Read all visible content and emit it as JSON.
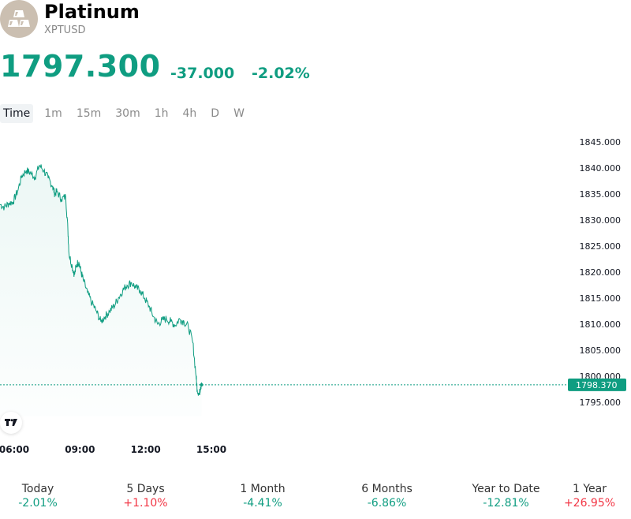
{
  "header": {
    "title": "Platinum",
    "ticker": "XPTUSD",
    "price": "1797.300",
    "change_abs": "-37.000",
    "change_pct": "-2.02%"
  },
  "tabs": [
    {
      "label": "Time",
      "active": true
    },
    {
      "label": "1m"
    },
    {
      "label": "15m"
    },
    {
      "label": "30m"
    },
    {
      "label": "1h"
    },
    {
      "label": "4h"
    },
    {
      "label": "D"
    },
    {
      "label": "W"
    }
  ],
  "colors": {
    "accent": "#0f9d81",
    "negative": "#f23645",
    "line": "#0f9d81",
    "badge": "#0f9d81"
  },
  "chart_data": {
    "type": "area",
    "ylim": [
      1792,
      1848
    ],
    "y_ticks": [
      "1845.000",
      "1840.000",
      "1835.000",
      "1830.000",
      "1825.000",
      "1820.000",
      "1815.000",
      "1810.000",
      "1805.000",
      "1800.000",
      "1795.000"
    ],
    "y_tick_values": [
      1845,
      1840,
      1835,
      1830,
      1825,
      1820,
      1815,
      1810,
      1805,
      1800,
      1795
    ],
    "x_ticks": [
      "06:00",
      "09:00",
      "12:00",
      "15:00"
    ],
    "x_tick_values": [
      6,
      9,
      12,
      15
    ],
    "xlim": [
      6,
      24.8
    ],
    "last_value": 1798.37,
    "last_value_label": "1798.370",
    "series": [
      {
        "x": [
          6.0,
          6.2,
          6.4,
          6.6,
          6.8,
          7.0,
          7.2,
          7.4,
          7.6,
          7.8,
          8.0,
          8.2,
          8.4,
          8.5,
          8.6,
          8.8,
          9.0,
          9.1,
          9.15,
          9.3,
          9.4,
          9.5,
          9.6,
          9.7,
          9.8,
          10.0,
          10.2,
          10.4,
          10.6,
          10.8,
          11.0,
          11.2,
          11.4,
          11.6,
          11.8,
          12.0,
          12.2,
          12.4,
          12.6,
          12.8,
          13.0,
          13.2,
          13.4,
          13.6,
          13.8,
          14.0,
          14.2,
          14.4,
          14.6,
          14.8,
          14.95,
          15.0,
          15.1,
          15.15,
          15.2
        ],
        "y": [
          1833.0,
          1832.5,
          1833.2,
          1833.5,
          1835.5,
          1838.5,
          1839.5,
          1839.0,
          1838.2,
          1840.5,
          1839.5,
          1838.0,
          1836.5,
          1835.0,
          1835.5,
          1834.0,
          1834.5,
          1828.0,
          1823.5,
          1821.0,
          1819.5,
          1821.5,
          1822.0,
          1820.0,
          1818.5,
          1816.0,
          1814.0,
          1812.5,
          1810.5,
          1811.5,
          1812.5,
          1813.5,
          1815.0,
          1816.5,
          1817.5,
          1818.0,
          1817.0,
          1816.5,
          1815.0,
          1813.5,
          1811.5,
          1810.0,
          1810.8,
          1811.0,
          1810.5,
          1809.8,
          1811.0,
          1810.5,
          1809.5,
          1806.5,
          1800.0,
          1797.5,
          1796.5,
          1798.0,
          1798.37
        ]
      }
    ]
  },
  "performance": [
    {
      "label": "Today",
      "value": "-2.01%",
      "trend": "down"
    },
    {
      "label": "5 Days",
      "value": "+1.10%",
      "trend": "up"
    },
    {
      "label": "1 Month",
      "value": "-4.41%",
      "trend": "down"
    },
    {
      "label": "6 Months",
      "value": "-6.86%",
      "trend": "down"
    },
    {
      "label": "Year to Date",
      "value": "-12.81%",
      "trend": "down"
    },
    {
      "label": "1 Year",
      "value": "+26.95%",
      "trend": "up"
    }
  ]
}
